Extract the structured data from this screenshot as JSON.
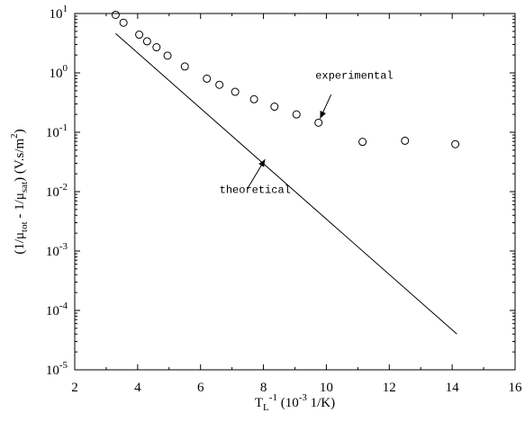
{
  "chart_data": {
    "type": "scatter",
    "title": "",
    "xlabel": {
      "base": "T",
      "sub": "L",
      "sup": "-1",
      "rest": " (10",
      "sup2": "-3",
      "tail": " 1/K)"
    },
    "ylabel": {
      "p1": "(1/μ",
      "s1": "tot",
      "p2": " - 1/μ",
      "s2": "sat",
      "p3": ") (V.s/m",
      "s3": "2",
      "p4": ")"
    },
    "x_scale": "linear",
    "y_scale": "log",
    "xlim": [
      2,
      16
    ],
    "ylim": [
      1e-05,
      10
    ],
    "xticks": [
      "2",
      "4",
      "6",
      "8",
      "10",
      "12",
      "14",
      "16"
    ],
    "yticks": [
      {
        "value": 10,
        "mant": "10",
        "exp": "1"
      },
      {
        "value": 1,
        "mant": "10",
        "exp": "0"
      },
      {
        "value": 0.1,
        "mant": "10",
        "exp": "-1"
      },
      {
        "value": 0.01,
        "mant": "10",
        "exp": "-2"
      },
      {
        "value": 0.001,
        "mant": "10",
        "exp": "-3"
      },
      {
        "value": 0.0001,
        "mant": "10",
        "exp": "-4"
      },
      {
        "value": 1e-05,
        "mant": "10",
        "exp": "-5"
      }
    ],
    "grid": false,
    "series": [
      {
        "style": "open-circle",
        "x": [
          3.3,
          3.55,
          4.05,
          4.3,
          4.6,
          4.95,
          5.5,
          6.2,
          6.6,
          7.1,
          7.7,
          8.35,
          9.05,
          9.75,
          11.15,
          12.5,
          14.1
        ],
        "y": [
          9.5,
          7.0,
          4.4,
          3.4,
          2.7,
          1.95,
          1.28,
          0.8,
          0.63,
          0.48,
          0.36,
          0.27,
          0.2,
          0.145,
          0.069,
          0.072,
          0.063
        ]
      },
      {
        "style": "line",
        "x": [
          3.3,
          14.15
        ],
        "y": [
          4.6,
          4e-05
        ]
      }
    ],
    "annotations": [
      {
        "text": "experimental",
        "label_x": 9.65,
        "label_y": 0.8,
        "arrow_from": [
          10.15,
          0.43
        ],
        "arrow_to": [
          9.8,
          0.17
        ]
      },
      {
        "text": "theoretical",
        "label_x": 6.6,
        "label_y": 0.0095,
        "arrow_from": [
          7.5,
          0.0115
        ],
        "arrow_to": [
          8.05,
          0.035
        ]
      }
    ]
  }
}
